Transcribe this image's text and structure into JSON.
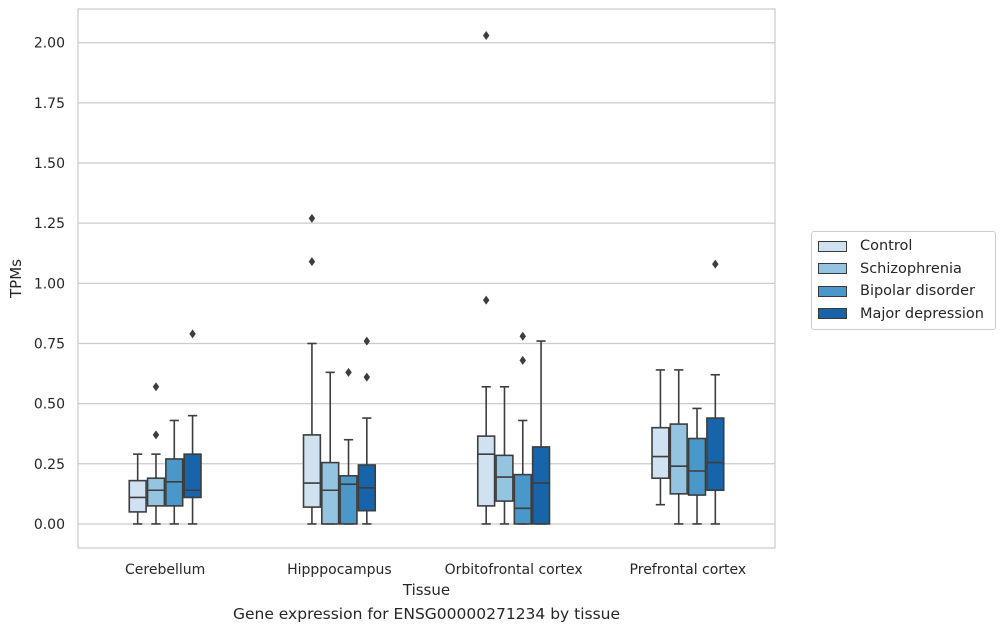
{
  "chart_data": {
    "type": "boxplot",
    "title": "",
    "xlabel": "Tissue",
    "ylabel": "TPMs",
    "caption": "Gene expression for ENSG00000271234 by tissue",
    "ylim": [
      -0.1,
      2.14
    ],
    "yticks": [
      "0.00",
      "0.25",
      "0.50",
      "0.75",
      "1.00",
      "1.25",
      "1.50",
      "1.75",
      "2.00"
    ],
    "categories": [
      "Cerebellum",
      "Hipppocampus",
      "Orbitofrontal cortex",
      "Prefrontal cortex"
    ],
    "grid": true,
    "legend_position": "right",
    "series": [
      {
        "name": "Control",
        "color": "#d0e1f2",
        "boxes": [
          {
            "min": 0.0,
            "q1": 0.05,
            "median": 0.11,
            "q3": 0.18,
            "max": 0.29,
            "outliers": []
          },
          {
            "min": 0.0,
            "q1": 0.07,
            "median": 0.17,
            "q3": 0.37,
            "max": 0.75,
            "outliers": [
              1.09,
              1.27
            ]
          },
          {
            "min": 0.0,
            "q1": 0.075,
            "median": 0.29,
            "q3": 0.365,
            "max": 0.57,
            "outliers": [
              0.93,
              2.03
            ]
          },
          {
            "min": 0.08,
            "q1": 0.19,
            "median": 0.28,
            "q3": 0.4,
            "max": 0.64,
            "outliers": []
          }
        ]
      },
      {
        "name": "Schizophrenia",
        "color": "#94c4df",
        "boxes": [
          {
            "min": 0.0,
            "q1": 0.075,
            "median": 0.14,
            "q3": 0.19,
            "max": 0.29,
            "outliers": [
              0.37,
              0.57
            ]
          },
          {
            "min": 0.0,
            "q1": 0.0,
            "median": 0.14,
            "q3": 0.255,
            "max": 0.63,
            "outliers": []
          },
          {
            "min": 0.0,
            "q1": 0.095,
            "median": 0.195,
            "q3": 0.285,
            "max": 0.57,
            "outliers": []
          },
          {
            "min": 0.0,
            "q1": 0.125,
            "median": 0.24,
            "q3": 0.415,
            "max": 0.64,
            "outliers": []
          }
        ]
      },
      {
        "name": "Bipolar disorder",
        "color": "#4a98c9",
        "boxes": [
          {
            "min": 0.0,
            "q1": 0.075,
            "median": 0.175,
            "q3": 0.27,
            "max": 0.43,
            "outliers": []
          },
          {
            "min": 0.0,
            "q1": 0.0,
            "median": 0.165,
            "q3": 0.2,
            "max": 0.35,
            "outliers": [
              0.63
            ]
          },
          {
            "min": 0.0,
            "q1": 0.0,
            "median": 0.065,
            "q3": 0.205,
            "max": 0.43,
            "outliers": [
              0.68,
              0.78
            ]
          },
          {
            "min": 0.0,
            "q1": 0.12,
            "median": 0.22,
            "q3": 0.355,
            "max": 0.48,
            "outliers": []
          }
        ]
      },
      {
        "name": "Major depression",
        "color": "#1764ab",
        "boxes": [
          {
            "min": 0.0,
            "q1": 0.11,
            "median": 0.14,
            "q3": 0.29,
            "max": 0.45,
            "outliers": [
              0.79
            ]
          },
          {
            "min": 0.0,
            "q1": 0.055,
            "median": 0.15,
            "q3": 0.245,
            "max": 0.44,
            "outliers": [
              0.61,
              0.76
            ]
          },
          {
            "min": 0.0,
            "q1": 0.0,
            "median": 0.17,
            "q3": 0.32,
            "max": 0.76,
            "outliers": []
          },
          {
            "min": 0.0,
            "q1": 0.14,
            "median": 0.255,
            "q3": 0.44,
            "max": 0.62,
            "outliers": [
              1.08
            ]
          }
        ]
      }
    ]
  }
}
